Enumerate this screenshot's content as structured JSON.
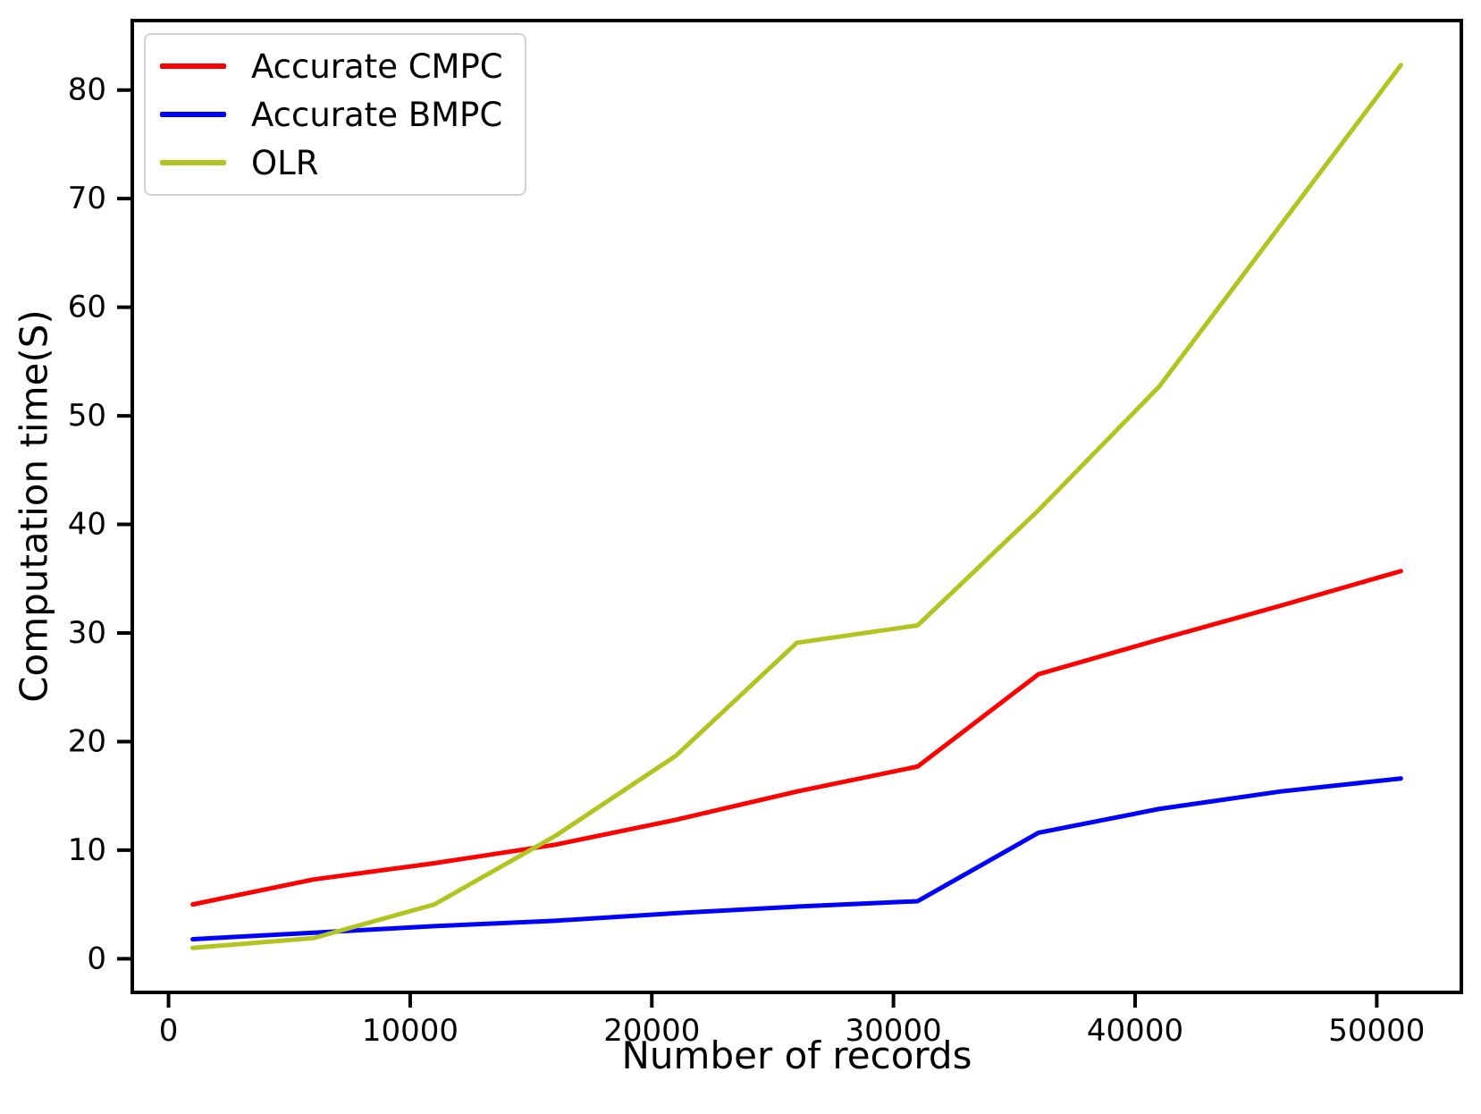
{
  "figure": {
    "background_color": "#ffffff",
    "text_color": "#000000",
    "spine_color": "#000000"
  },
  "chart_data": {
    "type": "line",
    "title": "",
    "xlabel": "Number of records",
    "ylabel": "Computation time(S)",
    "grid": false,
    "legend_position": "upper left",
    "x": [
      1000,
      6000,
      11000,
      16000,
      21000,
      26000,
      31000,
      36000,
      41000,
      46000,
      51000
    ],
    "series": [
      {
        "name": "Accurate CMPC",
        "color": "#ff0000",
        "values": [
          5.0,
          7.3,
          8.8,
          10.5,
          12.8,
          15.4,
          17.7,
          26.2,
          29.4,
          32.5,
          35.7
        ]
      },
      {
        "name": "Accurate BMPC",
        "color": "#0000ff",
        "values": [
          1.8,
          2.4,
          3.0,
          3.5,
          4.2,
          4.8,
          5.3,
          11.6,
          13.8,
          15.4,
          16.6
        ]
      },
      {
        "name": "OLR",
        "color": "#b2c420",
        "values": [
          1.0,
          1.9,
          5.0,
          11.3,
          18.7,
          29.1,
          30.7,
          41.3,
          52.7,
          67.5,
          82.3
        ]
      }
    ],
    "xticks": [
      0,
      10000,
      20000,
      30000,
      40000,
      50000
    ],
    "yticks": [
      0,
      10,
      20,
      30,
      40,
      50,
      60,
      70,
      80
    ],
    "xlim": [
      -1500,
      53500
    ],
    "ylim": [
      -3.1,
      86.4
    ]
  }
}
